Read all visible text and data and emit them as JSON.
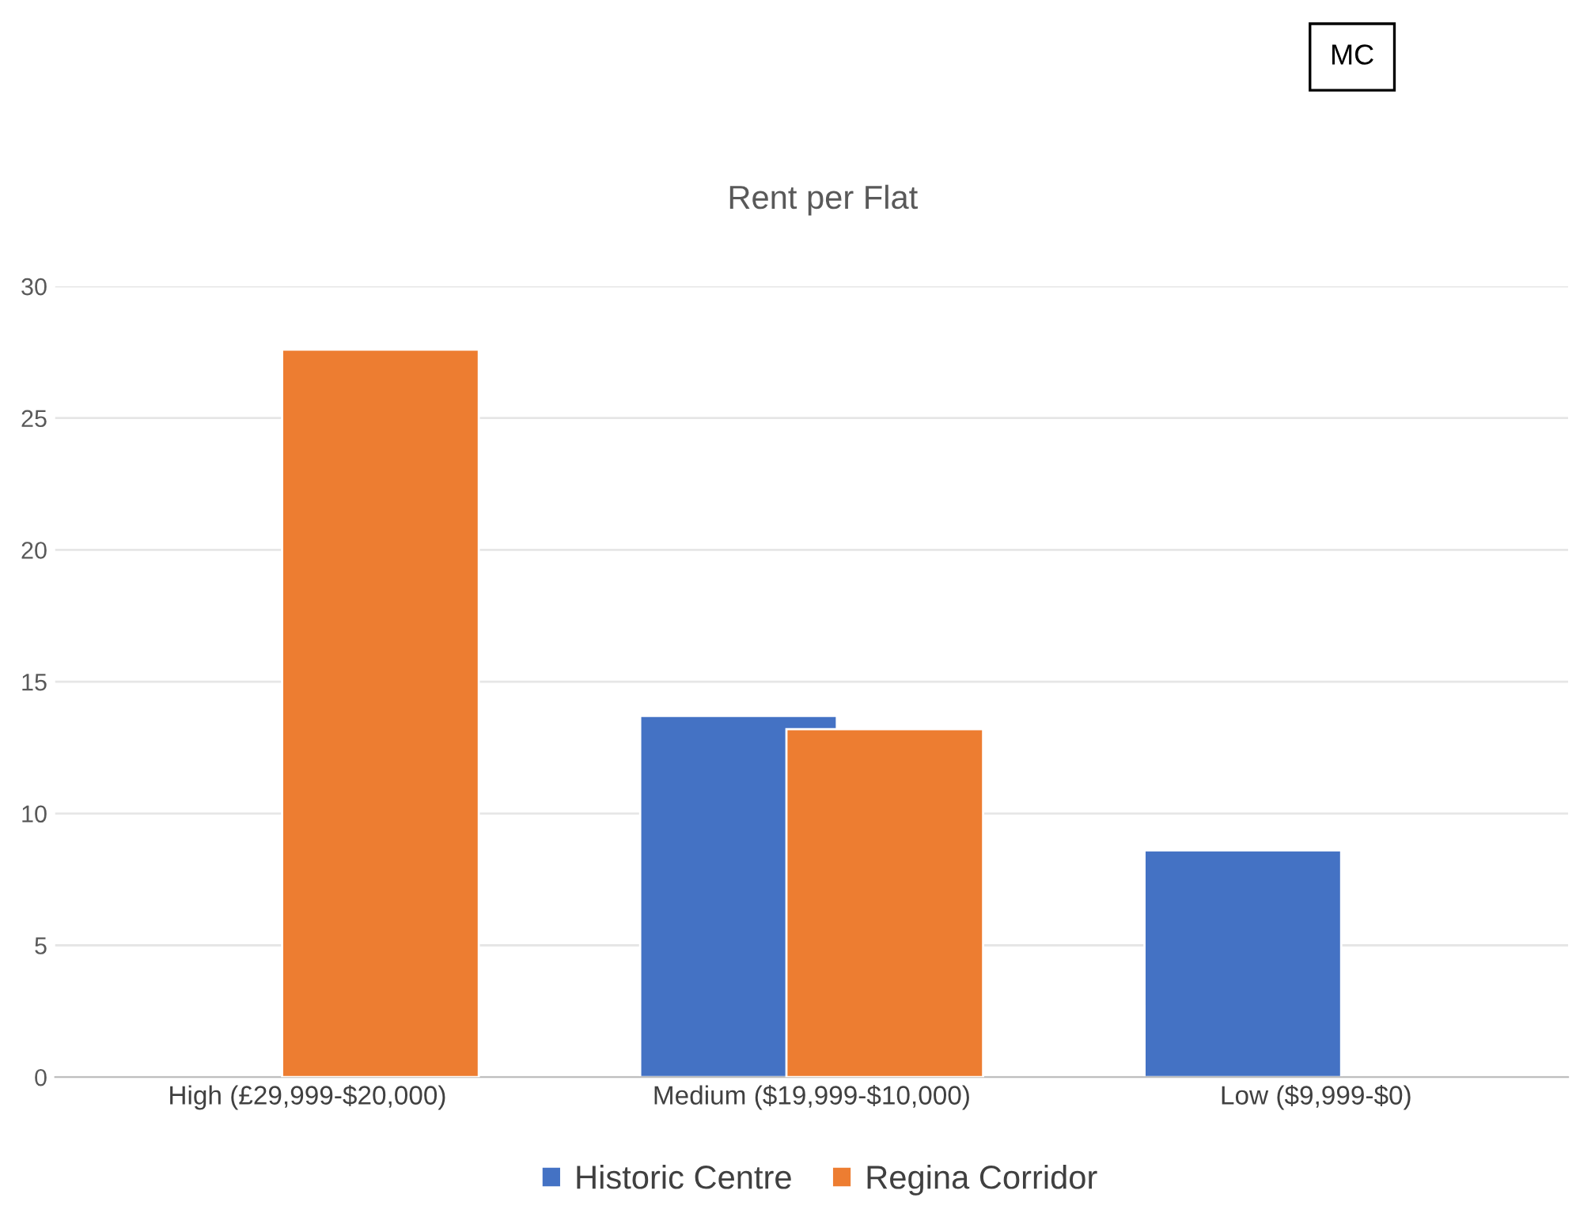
{
  "chart_data": {
    "type": "bar",
    "title": "Rent per Flat",
    "categories": [
      "High (£29,999-$20,000)",
      "Medium ($19,999-$10,000)",
      "Low ($9,999-$0)"
    ],
    "series": [
      {
        "name": "Historic Centre",
        "color": "#4472c4",
        "values": [
          null,
          13.7,
          8.6
        ]
      },
      {
        "name": "Regina Corridor",
        "color": "#ed7d31",
        "values": [
          27.6,
          13.2,
          null
        ]
      }
    ],
    "ylim": [
      0,
      30
    ],
    "yticks": [
      0,
      5,
      10,
      15,
      20,
      25,
      30
    ],
    "grid": "y",
    "legend": "bottom",
    "annotations": [
      "MC"
    ]
  }
}
